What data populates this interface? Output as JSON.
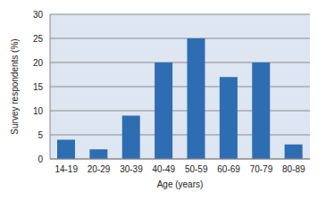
{
  "chart_data": {
    "type": "bar",
    "categories": [
      "14-19",
      "20-29",
      "30-39",
      "40-49",
      "50-59",
      "60-69",
      "70-79",
      "80-89"
    ],
    "values": [
      4,
      2,
      9,
      20,
      25,
      17,
      20,
      3
    ],
    "color": "#2f6db3",
    "ylim": [
      0,
      30
    ],
    "yticks": [
      0,
      5,
      10,
      15,
      20,
      25,
      30
    ],
    "grid": true,
    "x_label": "Age (years)",
    "y_label": "Survey respondents (%)"
  }
}
